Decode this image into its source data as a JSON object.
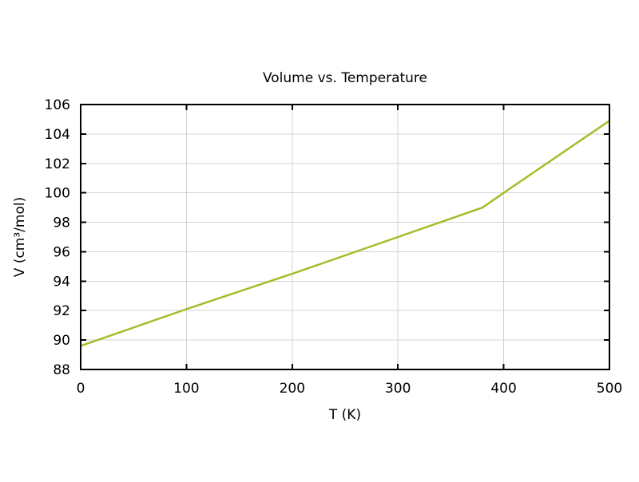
{
  "chart_data": {
    "type": "line",
    "title": "Volume vs. Temperature",
    "xlabel": "T (K)",
    "ylabel": "V (cm³/mol)",
    "series": [
      {
        "name": "Volume",
        "x": [
          0,
          100,
          200,
          300,
          380,
          400,
          500
        ],
        "y": [
          89.6,
          92.1,
          94.5,
          97.0,
          99.0,
          100.0,
          104.9
        ]
      }
    ],
    "xlim": [
      0,
      500
    ],
    "ylim": [
      88,
      106
    ],
    "xticks": [
      0,
      100,
      200,
      300,
      400,
      500
    ],
    "yticks": [
      88,
      90,
      92,
      94,
      96,
      98,
      100,
      102,
      104,
      106
    ],
    "grid": true,
    "legend": "none",
    "colors": {
      "line": "#a6bb28",
      "grid": "#d3d3d3",
      "border": "#000000",
      "text": "#000000",
      "background": "#ffffff"
    }
  }
}
